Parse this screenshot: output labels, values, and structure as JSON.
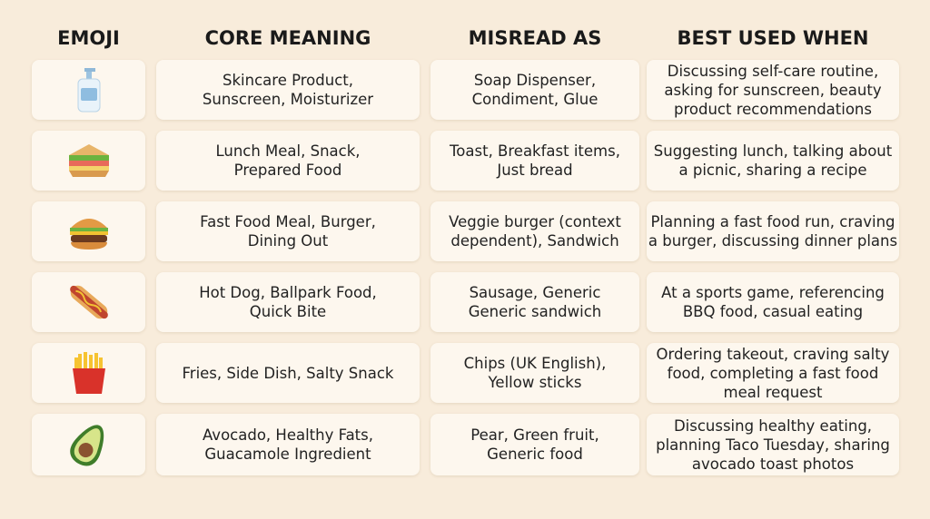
{
  "header": [
    "EMOJI",
    "CORE MEANING",
    "MISREAD AS",
    "BEST USED WHEN"
  ],
  "rows": [
    {
      "core": [
        "Skincare Product,",
        "Sunscreen, Moisturizer"
      ],
      "misread": [
        "Soap Dispenser,",
        "Condiment, Glue"
      ],
      "best": [
        "Discussing self-care routine,",
        "asking for sunscreen, beauty",
        "product recommendations"
      ]
    },
    {
      "core": [
        "Lunch Meal, Snack,",
        "Prepared Food"
      ],
      "misread": [
        "Toast, Breakfast items,",
        "Just bread"
      ],
      "best": [
        "Suggesting lunch, talking about",
        "a picnic, sharing a recipe"
      ]
    },
    {
      "core": [
        "Fast Food Meal, Burger,",
        "Dining Out"
      ],
      "misread": [
        "Veggie burger (context",
        "dependent), Sandwich"
      ],
      "best": [
        "Planning a fast food run, craving",
        "a burger, discussing dinner plans"
      ]
    },
    {
      "core": [
        "Hot Dog, Ballpark Food,",
        "Quick Bite"
      ],
      "misread": [
        "Sausage, Generic",
        "Generic sandwich"
      ],
      "best": [
        "At a sports game, referencing",
        "BBQ food, casual eating"
      ]
    },
    {
      "core": [
        "Fries, Side Dish, Salty Snack"
      ],
      "misread": [
        "Chips (UK English),",
        "Yellow sticks"
      ],
      "best": [
        "Ordering takeout, craving salty",
        "food, completing a fast food",
        "meal request"
      ]
    },
    {
      "core": [
        "Avocado, Healthy Fats,",
        "Guacamole Ingredient"
      ],
      "misread": [
        "Pear, Green fruit,",
        "Generic food"
      ],
      "best": [
        "Discussing healthy eating,",
        "planning Taco Tuesday, sharing",
        "avocado toast photos"
      ]
    }
  ]
}
